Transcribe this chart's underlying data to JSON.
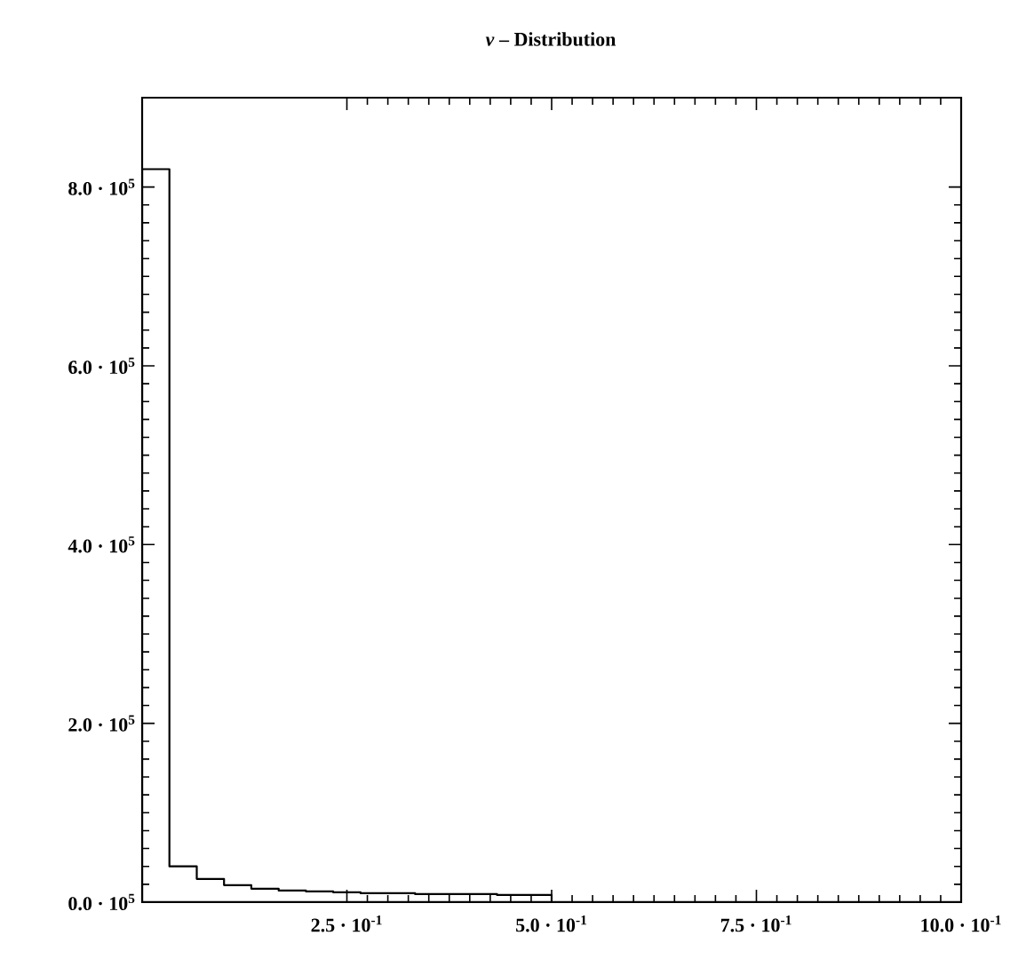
{
  "chart_data": {
    "type": "histogram",
    "title": "*v* – Distribution",
    "bins": [
      0,
      0.0333,
      0.0667,
      0.1,
      0.1333,
      0.1667,
      0.2,
      0.2333,
      0.2667,
      0.3,
      0.3333,
      0.3667,
      0.4,
      0.4333,
      0.4667,
      0.5
    ],
    "values": [
      820000,
      40000,
      26000,
      19000,
      15000,
      13000,
      12000,
      11000,
      10000,
      10000,
      9000,
      9000,
      9000,
      8000,
      8000
    ],
    "color": "#000000",
    "xlim": [
      0,
      1.0
    ],
    "ylim": [
      0,
      900000
    ],
    "xticks": [
      {
        "value": 0.25,
        "label": "2.5 · 10$^{-1}$"
      },
      {
        "value": 0.5,
        "label": "5.0 · 10$^{-1}$"
      },
      {
        "value": 0.75,
        "label": "7.5 · 10$^{-1}$"
      },
      {
        "value": 1.0,
        "label": "10.0 · 10$^{-1}$"
      }
    ],
    "yticks": [
      {
        "value": 0,
        "label": "0.0 · 10$^{5}$"
      },
      {
        "value": 200000,
        "label": "2.0 · 10$^{5}$"
      },
      {
        "value": 400000,
        "label": "4.0 · 10$^{5}$"
      },
      {
        "value": 600000,
        "label": "6.0 · 10$^{5}$"
      },
      {
        "value": 800000,
        "label": "8.0 · 10$^{5}$"
      }
    ],
    "grid": false
  }
}
